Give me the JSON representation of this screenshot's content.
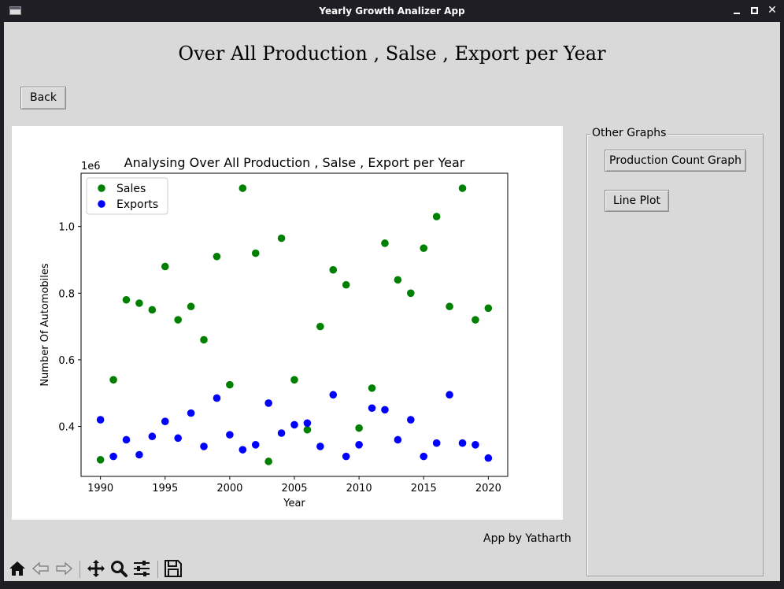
{
  "window": {
    "title": "Yearly Growth Analizer App"
  },
  "page": {
    "heading": "Over All Production , Salse , Export per Year",
    "back_label": "Back",
    "credit": "App by Yatharth"
  },
  "side_panel": {
    "group_label": "Other Graphs",
    "buttons": [
      "Production Count Graph",
      "Line Plot"
    ]
  },
  "toolbar": {
    "icons": [
      "home-icon",
      "back-arrow-icon",
      "forward-arrow-icon",
      "pan-icon",
      "zoom-icon",
      "configure-subplots-icon",
      "save-icon"
    ]
  },
  "colors": {
    "sales": "#008000",
    "exports": "#0000ff",
    "background": "#d9d9d9"
  },
  "chart_data": {
    "type": "scatter",
    "title": "Analysing Over All Production , Salse , Export per Year",
    "xlabel": "Year",
    "ylabel": "Number Of Automobiles",
    "y_offset_label": "1e6",
    "xlim": [
      1988.5,
      2021.5
    ],
    "ylim": [
      0.25,
      1.16
    ],
    "xticks": [
      1990,
      1995,
      2000,
      2005,
      2010,
      2015,
      2020
    ],
    "yticks": [
      0.4,
      0.6,
      0.8,
      1.0
    ],
    "ytick_labels": [
      "0.4",
      "0.6",
      "0.8",
      "1.0"
    ],
    "legend_position": "top-left",
    "x": [
      1990,
      1991,
      1992,
      1993,
      1994,
      1995,
      1996,
      1997,
      1998,
      1999,
      2000,
      2001,
      2002,
      2003,
      2004,
      2005,
      2006,
      2007,
      2008,
      2009,
      2010,
      2011,
      2012,
      2013,
      2014,
      2015,
      2016,
      2017,
      2018,
      2019,
      2020
    ],
    "series": [
      {
        "name": "Sales",
        "color": "#008000",
        "values": [
          0.3,
          0.54,
          0.78,
          0.77,
          0.75,
          0.88,
          0.72,
          0.76,
          0.66,
          0.91,
          0.525,
          1.115,
          0.92,
          0.295,
          0.965,
          0.54,
          0.39,
          0.7,
          0.87,
          0.825,
          0.395,
          0.515,
          0.95,
          0.84,
          0.8,
          0.935,
          1.03,
          0.76,
          1.115,
          0.72,
          0.755
        ]
      },
      {
        "name": "Exports",
        "color": "#0000ff",
        "values": [
          0.42,
          0.31,
          0.36,
          0.315,
          0.37,
          0.415,
          0.365,
          0.44,
          0.34,
          0.485,
          0.375,
          0.33,
          0.345,
          0.47,
          0.38,
          0.405,
          0.41,
          0.34,
          0.495,
          0.31,
          0.345,
          0.455,
          0.45,
          0.36,
          0.42,
          0.31,
          0.35,
          0.495,
          0.35,
          0.345,
          0.305
        ]
      }
    ]
  }
}
